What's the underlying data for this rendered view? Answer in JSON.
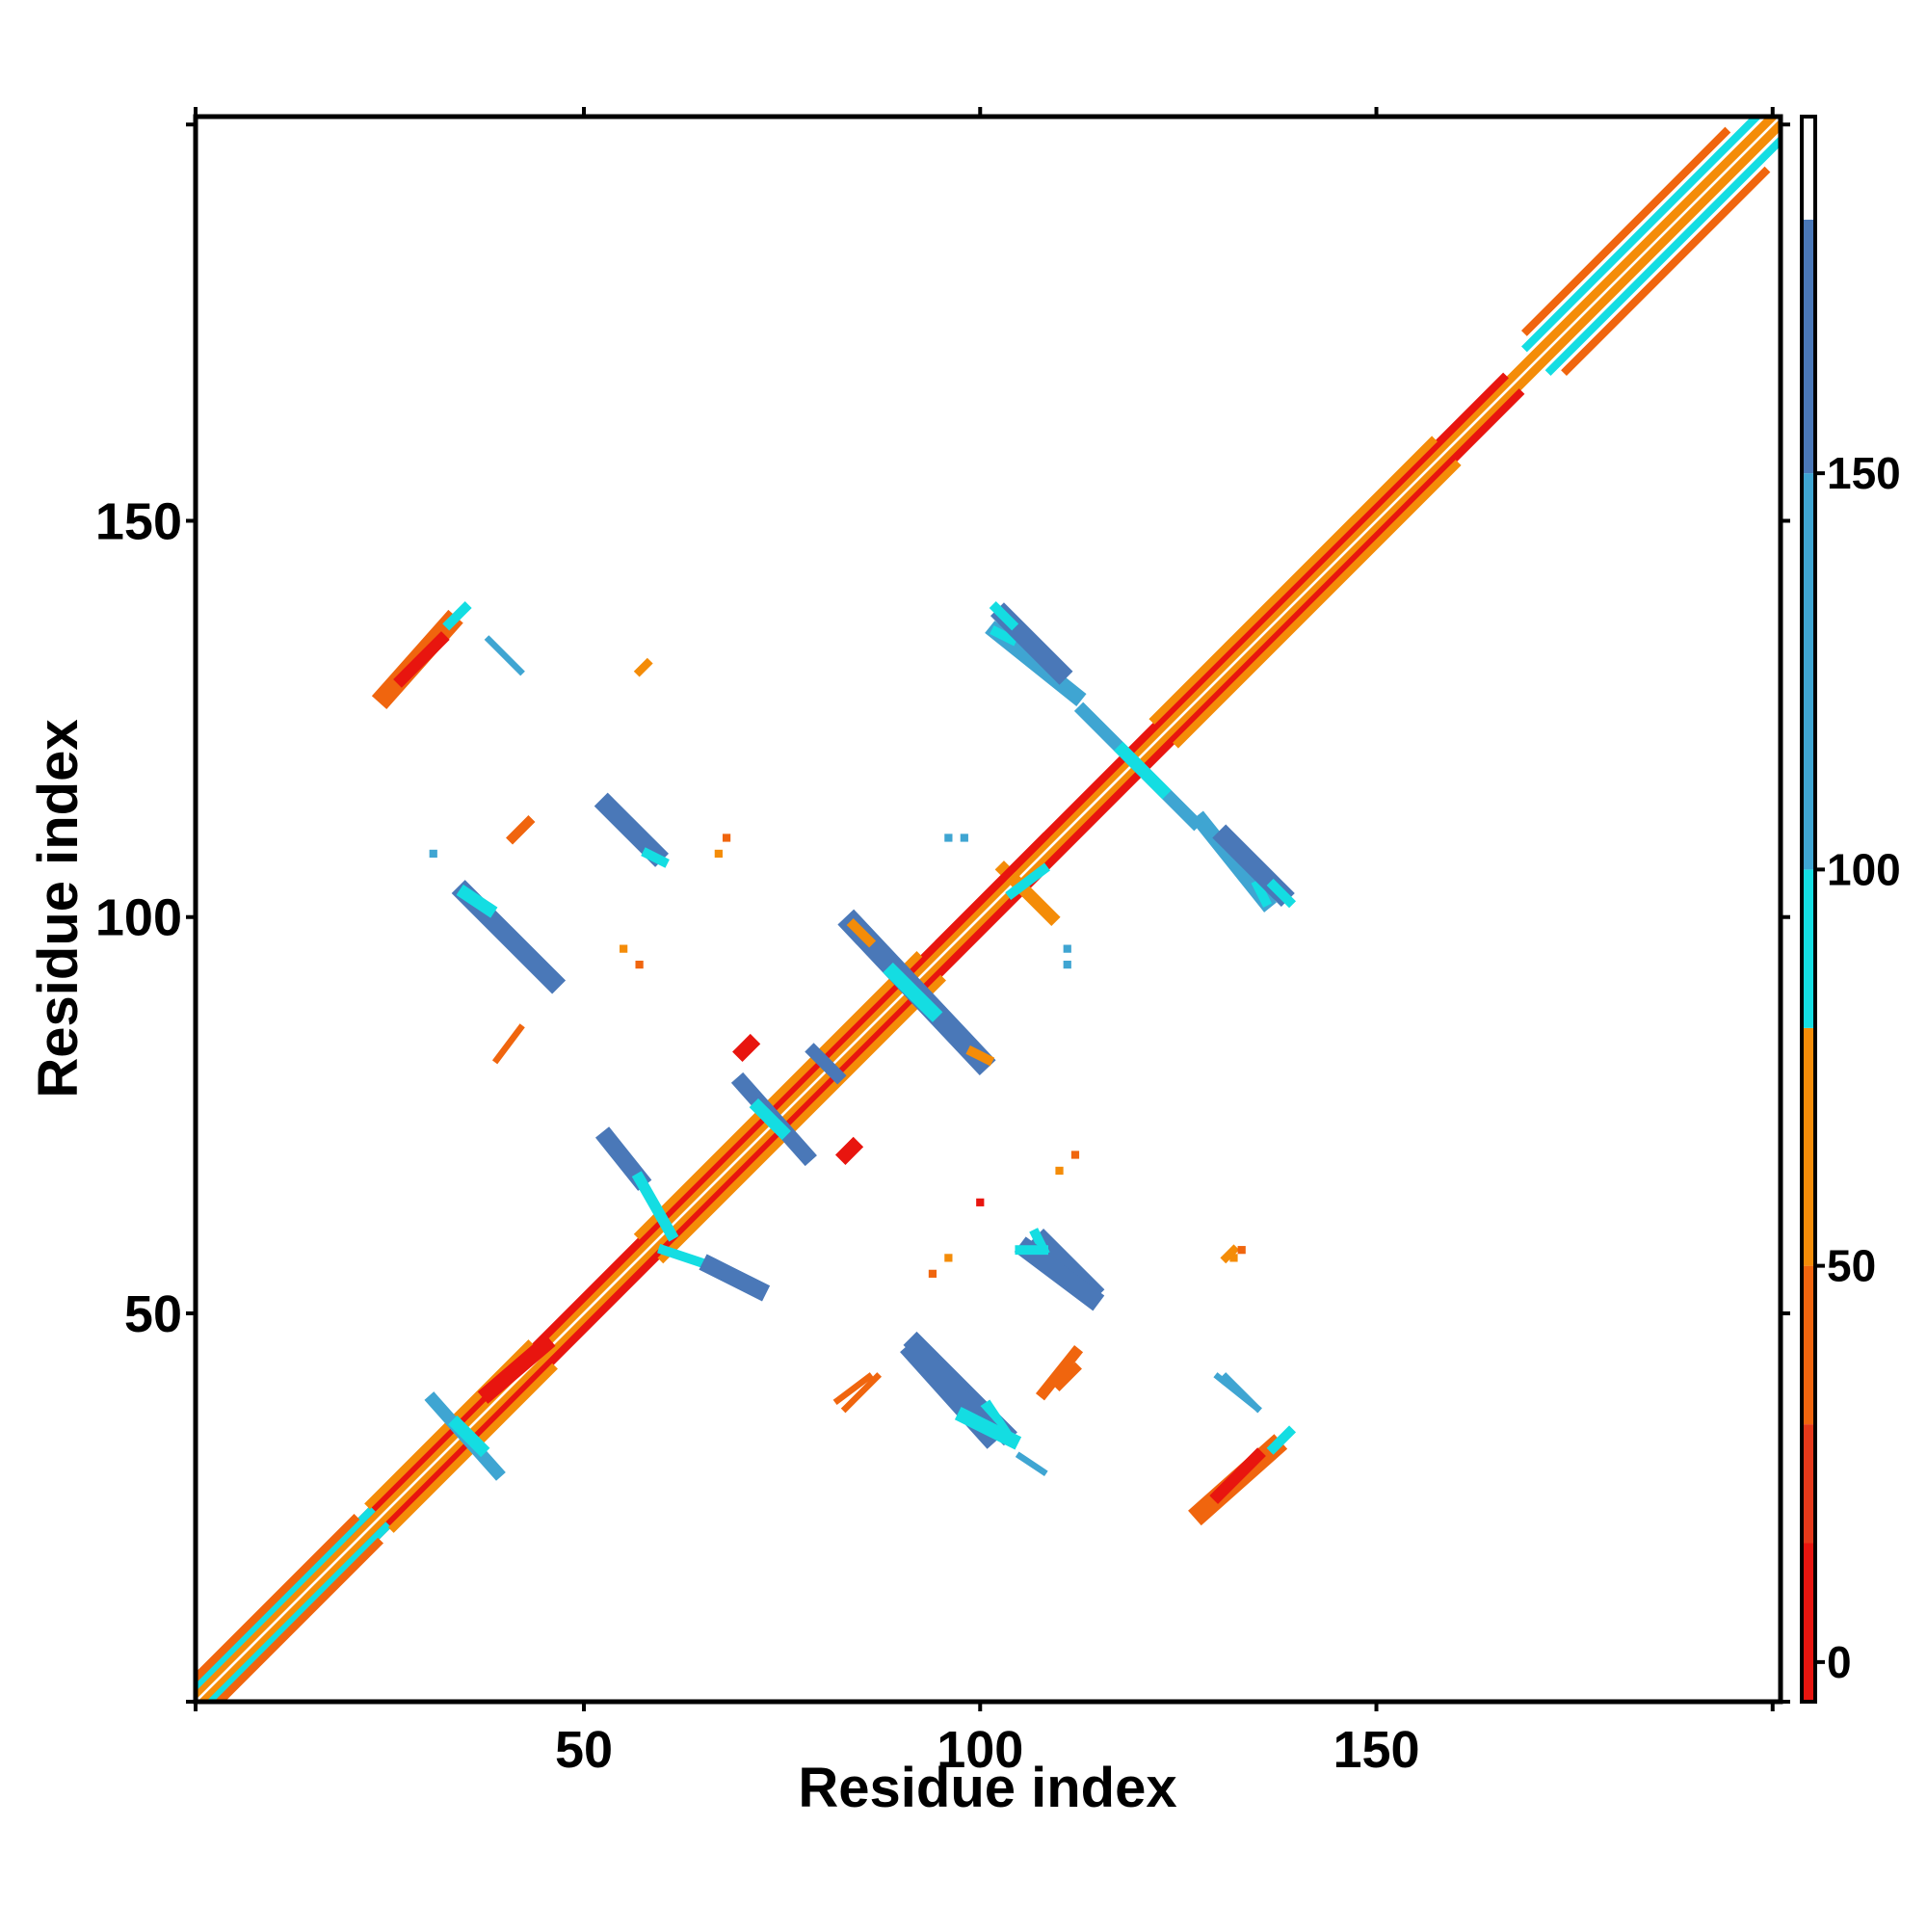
{
  "chart_data": {
    "type": "heatmap",
    "title": "",
    "xlabel": "Residue index",
    "ylabel": "Residue index",
    "xlim": [
      1,
      201
    ],
    "ylim": [
      1,
      201
    ],
    "xticks": [
      50,
      100,
      150
    ],
    "yticks": [
      50,
      100,
      150
    ],
    "grid": false,
    "colorbar": {
      "range": [
        -5,
        195
      ],
      "ticks": [
        0,
        50,
        100,
        150
      ],
      "bands": [
        {
          "from": -5,
          "to": 15,
          "color": "#e8150f"
        },
        {
          "from": 15,
          "to": 30,
          "color": "#e5391a"
        },
        {
          "from": 30,
          "to": 50,
          "color": "#f0650e"
        },
        {
          "from": 50,
          "to": 80,
          "color": "#f48c08"
        },
        {
          "from": 80,
          "to": 100,
          "color": "#14dde2"
        },
        {
          "from": 100,
          "to": 150,
          "color": "#3fa5d2"
        },
        {
          "from": 150,
          "to": 182,
          "color": "#4a78b8"
        },
        {
          "from": 182,
          "to": 195,
          "color": "#ffffff"
        }
      ]
    },
    "segments": [
      {
        "x1": 1,
        "y1": 1,
        "x2": 201,
        "y2": 201,
        "w": 1.2,
        "color": "#ffffff"
      },
      {
        "x1": 2,
        "y1": 1,
        "x2": 201,
        "y2": 200,
        "w": 1.1,
        "color": "#f48c08"
      },
      {
        "x1": 1,
        "y1": 2,
        "x2": 200,
        "y2": 201,
        "w": 1.1,
        "color": "#f48c08"
      },
      {
        "x1": 22,
        "y1": 20,
        "x2": 168,
        "y2": 166,
        "w": 1.0,
        "color": "#e8150f"
      },
      {
        "x1": 20,
        "y1": 22,
        "x2": 166,
        "y2": 168,
        "w": 1.0,
        "color": "#e8150f"
      },
      {
        "x1": 3,
        "y1": 1,
        "x2": 25,
        "y2": 23,
        "w": 1.0,
        "color": "#14dde2"
      },
      {
        "x1": 1,
        "y1": 3,
        "x2": 23,
        "y2": 25,
        "w": 1.0,
        "color": "#14dde2"
      },
      {
        "x1": 4,
        "y1": 1,
        "x2": 24,
        "y2": 21,
        "w": 1.0,
        "color": "#f0650e"
      },
      {
        "x1": 1,
        "y1": 4,
        "x2": 21,
        "y2": 24,
        "w": 1.0,
        "color": "#f0650e"
      },
      {
        "x1": 172,
        "y1": 169,
        "x2": 201,
        "y2": 198,
        "w": 1.0,
        "color": "#14dde2"
      },
      {
        "x1": 169,
        "y1": 172,
        "x2": 198,
        "y2": 201,
        "w": 1.0,
        "color": "#14dde2"
      },
      {
        "x1": 174,
        "y1": 169,
        "x2": 199,
        "y2": 194,
        "w": 1.0,
        "color": "#f0650e"
      },
      {
        "x1": 169,
        "y1": 174,
        "x2": 194,
        "y2": 199,
        "w": 1.0,
        "color": "#f0650e"
      },
      {
        "x1": 26,
        "y1": 23,
        "x2": 46,
        "y2": 43,
        "w": 1.0,
        "color": "#f48c08"
      },
      {
        "x1": 23,
        "y1": 26,
        "x2": 43,
        "y2": 46,
        "w": 1.0,
        "color": "#f48c08"
      },
      {
        "x1": 60,
        "y1": 57,
        "x2": 95,
        "y2": 92,
        "w": 1.0,
        "color": "#f48c08"
      },
      {
        "x1": 57,
        "y1": 60,
        "x2": 92,
        "y2": 95,
        "w": 1.0,
        "color": "#f48c08"
      },
      {
        "x1": 125,
        "y1": 122,
        "x2": 160,
        "y2": 157,
        "w": 1.0,
        "color": "#f48c08"
      },
      {
        "x1": 122,
        "y1": 125,
        "x2": 157,
        "y2": 160,
        "w": 1.0,
        "color": "#f48c08"
      },
      {
        "x1": 25,
        "y1": 128,
        "x2": 33,
        "y2": 137,
        "w": 2.5,
        "color": "#f0650e"
      },
      {
        "x1": 27,
        "y1": 130,
        "x2": 32,
        "y2": 135,
        "w": 1.5,
        "color": "#e8150f"
      },
      {
        "x1": 33,
        "y1": 137,
        "x2": 35,
        "y2": 139,
        "w": 1.2,
        "color": "#14dde2"
      },
      {
        "x1": 128,
        "y1": 25,
        "x2": 137,
        "y2": 33,
        "w": 2.5,
        "color": "#f0650e"
      },
      {
        "x1": 130,
        "y1": 27,
        "x2": 135,
        "y2": 32,
        "w": 1.5,
        "color": "#e8150f"
      },
      {
        "x1": 137,
        "y1": 33,
        "x2": 139,
        "y2": 35,
        "w": 1.2,
        "color": "#14dde2"
      },
      {
        "x1": 38,
        "y1": 135,
        "x2": 42,
        "y2": 131,
        "w": 0.8,
        "color": "#3fa5d2"
      },
      {
        "x1": 135,
        "y1": 38,
        "x2": 131,
        "y2": 42,
        "w": 0.8,
        "color": "#3fa5d2"
      },
      {
        "x1": 57,
        "y1": 131,
        "x2": 58,
        "y2": 132,
        "w": 1.0,
        "color": "#f48c08"
      },
      {
        "x1": 131,
        "y1": 57,
        "x2": 132,
        "y2": 58,
        "w": 1.0,
        "color": "#f48c08"
      },
      {
        "x1": 102,
        "y1": 136,
        "x2": 112,
        "y2": 128,
        "w": 2.0,
        "color": "#3fa5d2"
      },
      {
        "x1": 102,
        "y1": 136,
        "x2": 104,
        "y2": 135,
        "w": 1.2,
        "color": "#14dde2"
      },
      {
        "x1": 136,
        "y1": 102,
        "x2": 128,
        "y2": 112,
        "w": 2.0,
        "color": "#3fa5d2"
      },
      {
        "x1": 136,
        "y1": 102,
        "x2": 135,
        "y2": 104,
        "w": 1.2,
        "color": "#14dde2"
      },
      {
        "x1": 113,
        "y1": 126,
        "x2": 127,
        "y2": 112,
        "w": 1.6,
        "color": "#3fa5d2"
      },
      {
        "x1": 118,
        "y1": 121,
        "x2": 123,
        "y2": 116,
        "w": 1.6,
        "color": "#14dde2"
      },
      {
        "x1": 131,
        "y1": 110,
        "x2": 138,
        "y2": 103,
        "w": 2.4,
        "color": "#4a78b8"
      },
      {
        "x1": 137,
        "y1": 104,
        "x2": 139,
        "y2": 102,
        "w": 1.2,
        "color": "#14dde2"
      },
      {
        "x1": 110,
        "y1": 131,
        "x2": 103,
        "y2": 138,
        "w": 2.4,
        "color": "#4a78b8"
      },
      {
        "x1": 104,
        "y1": 137,
        "x2": 102,
        "y2": 139,
        "w": 1.2,
        "color": "#14dde2"
      },
      {
        "x1": 53,
        "y1": 114,
        "x2": 59,
        "y2": 108,
        "w": 2.4,
        "color": "#4a78b8"
      },
      {
        "x1": 58,
        "y1": 108,
        "x2": 60,
        "y2": 107,
        "w": 1.2,
        "color": "#14dde2"
      },
      {
        "x1": 114,
        "y1": 53,
        "x2": 108,
        "y2": 59,
        "w": 2.4,
        "color": "#4a78b8"
      },
      {
        "x1": 108,
        "y1": 58,
        "x2": 107,
        "y2": 60,
        "w": 1.2,
        "color": "#14dde2"
      },
      {
        "x1": 41,
        "y1": 110,
        "x2": 43,
        "y2": 112,
        "w": 1.2,
        "color": "#f0650e"
      },
      {
        "x1": 110,
        "y1": 41,
        "x2": 112,
        "y2": 43,
        "w": 1.2,
        "color": "#f0650e"
      },
      {
        "x1": 35,
        "y1": 103,
        "x2": 46,
        "y2": 92,
        "w": 2.4,
        "color": "#4a78b8"
      },
      {
        "x1": 35,
        "y1": 103,
        "x2": 38,
        "y2": 101,
        "w": 1.6,
        "color": "#14dde2"
      },
      {
        "x1": 103,
        "y1": 35,
        "x2": 92,
        "y2": 46,
        "w": 2.4,
        "color": "#4a78b8"
      },
      {
        "x1": 101,
        "y1": 38,
        "x2": 103,
        "y2": 35,
        "w": 1.6,
        "color": "#14dde2"
      },
      {
        "x1": 39,
        "y1": 82,
        "x2": 42,
        "y2": 86,
        "w": 0.8,
        "color": "#f0650e"
      },
      {
        "x1": 82,
        "y1": 39,
        "x2": 86,
        "y2": 42,
        "w": 0.8,
        "color": "#f0650e"
      },
      {
        "x1": 84,
        "y1": 99,
        "x2": 100,
        "y2": 82,
        "w": 2.8,
        "color": "#4a78b8"
      },
      {
        "x1": 89,
        "y1": 93,
        "x2": 94,
        "y2": 88,
        "w": 1.8,
        "color": "#14dde2"
      },
      {
        "x1": 84,
        "y1": 99,
        "x2": 86,
        "y2": 97,
        "w": 1.2,
        "color": "#f48c08"
      },
      {
        "x1": 99,
        "y1": 83,
        "x2": 101,
        "y2": 82,
        "w": 1.2,
        "color": "#f48c08"
      },
      {
        "x1": 70,
        "y1": 79,
        "x2": 78,
        "y2": 70,
        "w": 2.0,
        "color": "#4a78b8"
      },
      {
        "x1": 72,
        "y1": 76,
        "x2": 75,
        "y2": 73,
        "w": 1.6,
        "color": "#14dde2"
      },
      {
        "x1": 79,
        "y1": 83,
        "x2": 82,
        "y2": 80,
        "w": 1.6,
        "color": "#4a78b8"
      },
      {
        "x1": 70,
        "y1": 83,
        "x2": 71,
        "y2": 84,
        "w": 1.8,
        "color": "#e8150f"
      },
      {
        "x1": 83,
        "y1": 70,
        "x2": 84,
        "y2": 71,
        "w": 1.8,
        "color": "#e8150f"
      },
      {
        "x1": 53,
        "y1": 72,
        "x2": 57,
        "y2": 67,
        "w": 2.2,
        "color": "#4a78b8"
      },
      {
        "x1": 57,
        "y1": 67,
        "x2": 61,
        "y2": 60,
        "w": 1.4,
        "color": "#14dde2"
      },
      {
        "x1": 60,
        "y1": 58,
        "x2": 66,
        "y2": 56,
        "w": 1.2,
        "color": "#14dde2"
      },
      {
        "x1": 66,
        "y1": 56,
        "x2": 72,
        "y2": 53,
        "w": 2.2,
        "color": "#4a78b8"
      },
      {
        "x1": 106,
        "y1": 58,
        "x2": 114,
        "y2": 52,
        "w": 2.4,
        "color": "#4a78b8"
      },
      {
        "x1": 105,
        "y1": 58,
        "x2": 108,
        "y2": 58,
        "w": 1.2,
        "color": "#14dde2"
      },
      {
        "x1": 92,
        "y1": 45,
        "x2": 101,
        "y2": 35,
        "w": 3.0,
        "color": "#4a78b8"
      },
      {
        "x1": 98,
        "y1": 37,
        "x2": 104,
        "y2": 34,
        "w": 1.8,
        "color": "#14dde2"
      },
      {
        "x1": 105,
        "y1": 32,
        "x2": 108,
        "y2": 30,
        "w": 0.8,
        "color": "#3fa5d2"
      },
      {
        "x1": 83,
        "y1": 38,
        "x2": 87,
        "y2": 42,
        "w": 0.8,
        "color": "#f0650e"
      },
      {
        "x1": 108,
        "y1": 40,
        "x2": 112,
        "y2": 45,
        "w": 1.4,
        "color": "#f0650e"
      },
      {
        "x1": 130,
        "y1": 42,
        "x2": 135,
        "y2": 38,
        "w": 0.8,
        "color": "#3fa5d2"
      },
      {
        "x1": 31,
        "y1": 39,
        "x2": 39,
        "y2": 30,
        "w": 1.6,
        "color": "#3fa5d2"
      },
      {
        "x1": 34,
        "y1": 36,
        "x2": 37,
        "y2": 33,
        "w": 1.6,
        "color": "#14dde2"
      },
      {
        "x1": 38,
        "y1": 40,
        "x2": 45,
        "y2": 46,
        "w": 2.0,
        "color": "#e8150f"
      },
      {
        "x1": 103,
        "y1": 106,
        "x2": 109,
        "y2": 100,
        "w": 1.6,
        "color": "#f48c08"
      },
      {
        "x1": 104,
        "y1": 103,
        "x2": 108,
        "y2": 106,
        "w": 1.2,
        "color": "#14dde2"
      },
      {
        "x1": 95,
        "y1": 97,
        "x2": 108,
        "y2": 110,
        "w": 1.0,
        "color": "#e8150f"
      }
    ],
    "dots": [
      {
        "x": 31,
        "y": 108,
        "color": "#3fa5d2"
      },
      {
        "x": 55,
        "y": 96,
        "color": "#f48c08"
      },
      {
        "x": 57,
        "y": 94,
        "color": "#f0650e"
      },
      {
        "x": 67,
        "y": 108,
        "color": "#f48c08"
      },
      {
        "x": 68,
        "y": 110,
        "color": "#f0650e"
      },
      {
        "x": 96,
        "y": 110,
        "color": "#3fa5d2"
      },
      {
        "x": 98,
        "y": 110,
        "color": "#3fa5d2"
      },
      {
        "x": 111,
        "y": 96,
        "color": "#3fa5d2"
      },
      {
        "x": 111,
        "y": 94,
        "color": "#3fa5d2"
      },
      {
        "x": 110,
        "y": 68,
        "color": "#f48c08"
      },
      {
        "x": 112,
        "y": 70,
        "color": "#f0650e"
      },
      {
        "x": 94,
        "y": 55,
        "color": "#f0650e"
      },
      {
        "x": 96,
        "y": 57,
        "color": "#f48c08"
      },
      {
        "x": 132,
        "y": 57,
        "color": "#f48c08"
      },
      {
        "x": 133,
        "y": 58,
        "color": "#f0650e"
      },
      {
        "x": 100,
        "y": 64,
        "color": "#e8150f"
      }
    ]
  }
}
